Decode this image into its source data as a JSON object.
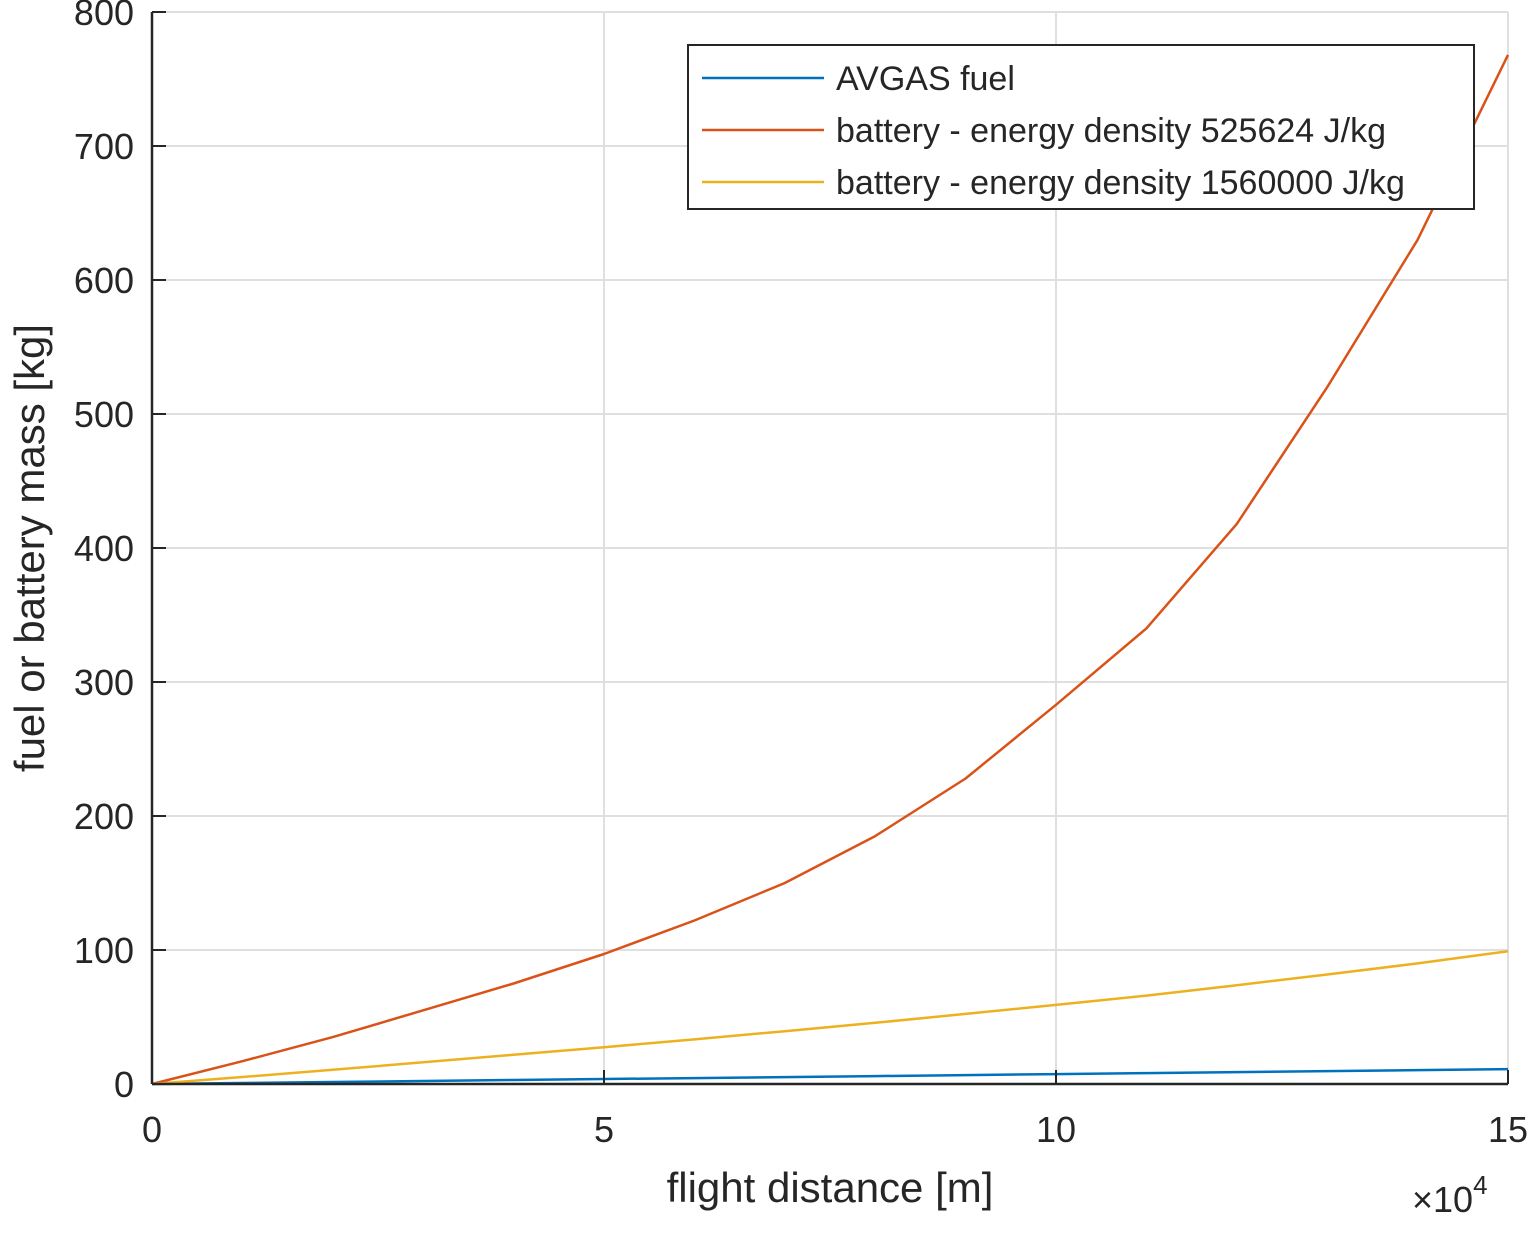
{
  "chart_data": {
    "type": "line",
    "xlabel": "flight distance [m]",
    "ylabel": "fuel or battery mass [kg]",
    "x_exponent_base": "×10",
    "x_exponent_power": "4",
    "xlim": [
      0,
      15
    ],
    "ylim": [
      0,
      800
    ],
    "x_ticks": [
      0,
      5,
      10,
      15
    ],
    "x_tick_labels": [
      "0",
      "5",
      "10",
      "15"
    ],
    "y_ticks": [
      0,
      100,
      200,
      300,
      400,
      500,
      600,
      700,
      800
    ],
    "y_tick_labels": [
      "0",
      "100",
      "200",
      "300",
      "400",
      "500",
      "600",
      "700",
      "800"
    ],
    "grid": true,
    "legend_placement": "top-right",
    "x": [
      0,
      1,
      2,
      3,
      4,
      5,
      6,
      7,
      8,
      9,
      10,
      11,
      12,
      13,
      14,
      15
    ],
    "series": [
      {
        "name": "AVGAS fuel",
        "color": "#0072BD",
        "values": [
          0,
          0.74,
          1.48,
          2.22,
          2.96,
          3.7,
          4.44,
          5.18,
          5.92,
          6.66,
          7.4,
          8.14,
          8.88,
          9.62,
          10.36,
          11.1
        ]
      },
      {
        "name": "battery - energy density 525624 J/kg",
        "color": "#D95319",
        "values": [
          0,
          17,
          35,
          55,
          75,
          97,
          122,
          150,
          185,
          228,
          283,
          340,
          418,
          520,
          630,
          768
        ]
      },
      {
        "name": "battery - energy density 1560000 J/kg",
        "color": "#EDB120",
        "values": [
          0,
          5.2,
          10.6,
          16.2,
          21.8,
          27.5,
          33.3,
          39.4,
          45.7,
          52.3,
          59,
          66,
          73.7,
          81.7,
          90,
          99
        ]
      }
    ]
  }
}
